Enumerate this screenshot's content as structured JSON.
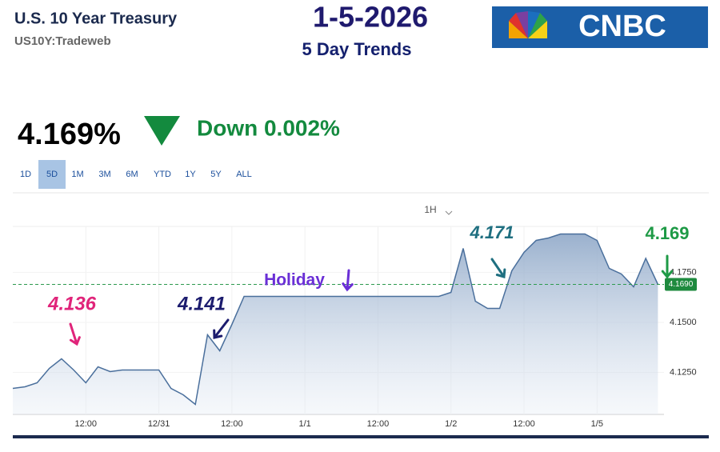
{
  "header": {
    "title": "U.S. 10 Year Treasury",
    "symbol": "US10Y:Tradeweb"
  },
  "date": "1-5-2026",
  "subtitle": "5 Day Trends",
  "logo": "CNBC",
  "quote": {
    "price": "4.169%",
    "change": "Down 0.002%"
  },
  "ranges": [
    "1D",
    "5D",
    "1M",
    "3M",
    "6M",
    "YTD",
    "1Y",
    "5Y",
    "ALL"
  ],
  "interval": "1H",
  "chart_data": {
    "type": "area",
    "categories": [
      null,
      null,
      null,
      null,
      null,
      null,
      "12:00",
      null,
      null,
      null,
      null,
      null,
      "12/31",
      null,
      null,
      null,
      null,
      null,
      "12:00",
      null,
      null,
      null,
      null,
      null,
      "1/1",
      null,
      null,
      null,
      null,
      null,
      "12:00",
      null,
      null,
      null,
      null,
      null,
      "1/2",
      null,
      null,
      null,
      null,
      null,
      "12:00",
      null,
      null,
      null,
      null,
      null,
      "1/5",
      null,
      null,
      null,
      null,
      null
    ],
    "series": [
      {
        "name": "US10Y",
        "color": "#4a6f9c",
        "values": [
          4.117,
          4.1178,
          4.1198,
          4.127,
          4.1318,
          4.1262,
          4.1198,
          4.1278,
          4.1254,
          4.1262,
          4.1262,
          4.1262,
          4.1262,
          4.117,
          4.1138,
          4.109,
          4.1438,
          4.1358,
          4.149,
          4.163,
          4.163,
          4.163,
          4.163,
          4.163,
          4.163,
          4.163,
          4.163,
          4.163,
          4.163,
          4.163,
          4.163,
          4.163,
          4.163,
          4.163,
          4.163,
          4.163,
          4.165,
          4.187,
          4.1606,
          4.157,
          4.157,
          4.1758,
          4.185,
          4.191,
          4.1922,
          4.1942,
          4.1942,
          4.1942,
          4.191,
          4.177,
          4.1742,
          4.1678,
          4.182,
          4.169
        ]
      }
    ],
    "ylim": [
      4.104,
      4.198
    ],
    "yticks": [
      {
        "value": 4.125,
        "label": "4.1250"
      },
      {
        "value": 4.15,
        "label": "4.1500"
      },
      {
        "value": 4.175,
        "label": "4.1750"
      }
    ],
    "last_price": {
      "value": 4.169,
      "label": "4.1690"
    },
    "grid": true,
    "annotations": [
      {
        "text": "4.136",
        "color": "#e0247a"
      },
      {
        "text": "4.141",
        "color": "#1c1c6e"
      },
      {
        "text": "Holiday",
        "color": "#6a2fd6"
      },
      {
        "text": "4.171",
        "color": "#1f6f80"
      },
      {
        "text": "4.169",
        "color": "#1e9a46"
      }
    ]
  }
}
